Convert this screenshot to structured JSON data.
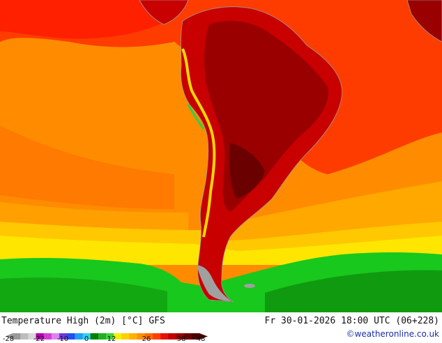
{
  "title": "Temperature High (2m) [°C] GFS",
  "datetime": "Fr 30-01-2026 18:00 UTC (06+228)",
  "credit": "©weatheronline.co.uk",
  "legend": {
    "ticks": [
      "-28",
      "-22",
      "-10",
      "0",
      "12",
      "26",
      "38",
      "48"
    ],
    "colors": [
      "#9a9a9a",
      "#bdbdbd",
      "#d8d8d8",
      "#b000b0",
      "#d040d0",
      "#e080f0",
      "#6a3cd8",
      "#2050f0",
      "#20a0f0",
      "#30d0f0",
      "#008000",
      "#20b020",
      "#40d040",
      "#f0f000",
      "#ffd000",
      "#ffb000",
      "#ff9000",
      "#ff6a00",
      "#ff4000",
      "#e81000",
      "#c00000",
      "#9a0000",
      "#6a0000",
      "#4a0000"
    ]
  },
  "palette": {
    "ocean_warm": "#ff8c00",
    "ocean_hot": "#ff3c00",
    "land_hot": "#c80000",
    "land_extreme": "#7a0000",
    "cool_yellow": "#ffd800",
    "cold_green": "#18c81c",
    "coast": "#9a9a9a"
  }
}
